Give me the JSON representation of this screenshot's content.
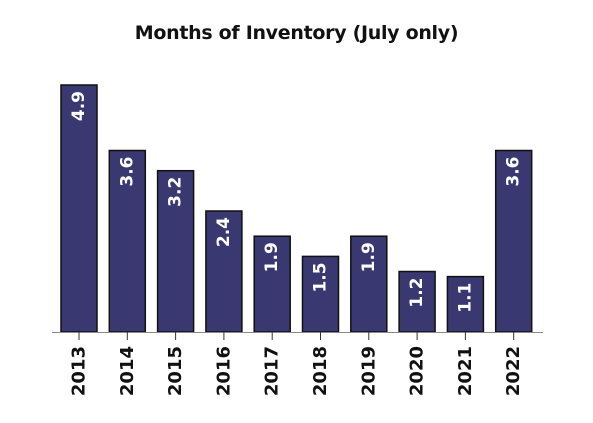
{
  "chart_data": {
    "type": "bar",
    "title": "Months of Inventory (July only)",
    "categories": [
      "2013",
      "2014",
      "2015",
      "2016",
      "2017",
      "2018",
      "2019",
      "2020",
      "2021",
      "2022"
    ],
    "values": [
      4.9,
      3.6,
      3.2,
      2.4,
      1.9,
      1.5,
      1.9,
      1.2,
      1.1,
      3.6
    ],
    "labels": [
      "4.9",
      "3.6",
      "3.2",
      "2.4",
      "1.9",
      "1.5",
      "1.9",
      "1.2",
      "1.1",
      "3.6"
    ],
    "ylim": [
      0,
      4.9
    ],
    "grid": false,
    "xlabel": "",
    "ylabel": ""
  },
  "colors": {
    "bar": "#3a3870",
    "label_inside": "#ffffff",
    "label_outside": "#111111"
  }
}
